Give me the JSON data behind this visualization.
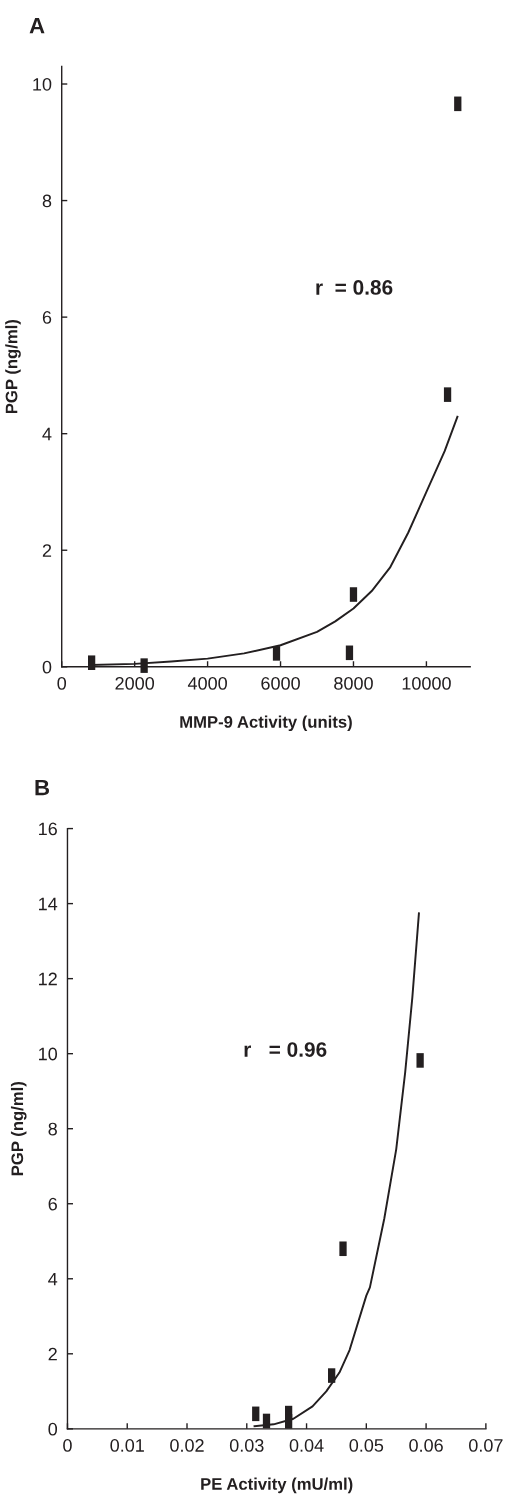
{
  "chart_data": [
    {
      "type": "scatter",
      "title": "A",
      "xlabel": "MMP-9 Activity (units)",
      "ylabel": "PGP (ng/ml)",
      "annotations": [
        "r  = 0.86"
      ],
      "xlim": [
        0,
        11200
      ],
      "xticks": [
        0,
        2000,
        4000,
        6000,
        8000,
        10000
      ],
      "ylim": [
        0,
        10.3
      ],
      "yticks": [
        0,
        2,
        4,
        6,
        8,
        10
      ],
      "marker": "square",
      "grid": false,
      "series": [
        {
          "color": "#231f20",
          "x": [
            820,
            2260,
            5890,
            7890,
            8000,
            10580,
            10860
          ],
          "values": [
            0.07,
            0.02,
            0.23,
            0.24,
            1.24,
            4.67,
            9.66
          ]
        },
        {
          "type": "line",
          "color": "#231f20",
          "marker": "none",
          "line_style": "solid",
          "x": [
            800,
            2000,
            3000,
            4000,
            5000,
            6000,
            7000,
            7500,
            8000,
            8500,
            9000,
            9500,
            10000,
            10500,
            10850
          ],
          "values": [
            0.03,
            0.05,
            0.09,
            0.14,
            0.23,
            0.37,
            0.6,
            0.78,
            1.0,
            1.3,
            1.7,
            2.3,
            3.0,
            3.7,
            4.29
          ]
        }
      ]
    },
    {
      "type": "scatter",
      "title": "B",
      "xlabel": "PE Activity (mU/ml)",
      "ylabel": "PGP (ng/ml)",
      "annotations": [
        "r   = 0.96"
      ],
      "xlim": [
        0,
        0.07
      ],
      "xticks": [
        0,
        0.01,
        0.02,
        0.03,
        0.04,
        0.05,
        0.06,
        0.07
      ],
      "ylim": [
        0,
        16
      ],
      "yticks": [
        0,
        2,
        4,
        6,
        8,
        10,
        12,
        14,
        16
      ],
      "marker": "square",
      "grid": false,
      "series": [
        {
          "color": "#231f20",
          "x": [
            0.0315,
            0.0333,
            0.037,
            0.037,
            0.0442,
            0.0461,
            0.059
          ],
          "values": [
            0.4,
            0.21,
            0.42,
            0.2,
            1.42,
            4.8,
            9.82
          ]
        },
        {
          "type": "line",
          "color": "#231f20",
          "marker": "none",
          "line_style": "solid",
          "x": [
            0.0313,
            0.0345,
            0.0378,
            0.041,
            0.0433,
            0.0455,
            0.0472,
            0.05,
            0.0506,
            0.053,
            0.055,
            0.0565,
            0.0577,
            0.0588
          ],
          "values": [
            0.07,
            0.12,
            0.27,
            0.6,
            1.0,
            1.5,
            2.1,
            3.55,
            3.77,
            5.6,
            7.45,
            9.5,
            11.5,
            13.74
          ]
        }
      ]
    }
  ]
}
